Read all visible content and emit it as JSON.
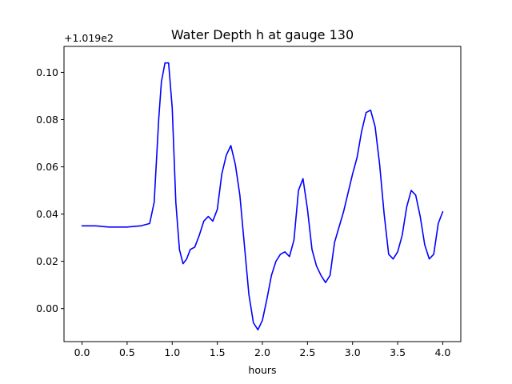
{
  "chart_data": {
    "type": "line",
    "title": "Water Depth h at gauge 130",
    "xlabel": "hours",
    "ylabel": "",
    "y_offset_label": "+1.019e2",
    "xlim": [
      -0.2,
      4.2
    ],
    "ylim": [
      -0.014,
      0.111
    ],
    "xticks": [
      0.0,
      0.5,
      1.0,
      1.5,
      2.0,
      2.5,
      3.0,
      3.5,
      4.0
    ],
    "xtick_labels": [
      "0.0",
      "0.5",
      "1.0",
      "1.5",
      "2.0",
      "2.5",
      "3.0",
      "3.5",
      "4.0"
    ],
    "yticks": [
      0.0,
      0.02,
      0.04,
      0.06,
      0.08,
      0.1
    ],
    "ytick_labels": [
      "0.00",
      "0.02",
      "0.04",
      "0.06",
      "0.08",
      "0.10"
    ],
    "grid": false,
    "line_color": "#0000ff",
    "series": [
      {
        "x": [
          0.0,
          0.15,
          0.3,
          0.5,
          0.65,
          0.75,
          0.8,
          0.85,
          0.88,
          0.92,
          0.96,
          1.0,
          1.04,
          1.08,
          1.12,
          1.16,
          1.2,
          1.25,
          1.3,
          1.35,
          1.4,
          1.45,
          1.5,
          1.55,
          1.6,
          1.65,
          1.7,
          1.75,
          1.8,
          1.85,
          1.9,
          1.95,
          2.0,
          2.05,
          2.1,
          2.15,
          2.2,
          2.25,
          2.3,
          2.35,
          2.4,
          2.45,
          2.5,
          2.55,
          2.6,
          2.65,
          2.7,
          2.75,
          2.8,
          2.9,
          3.0,
          3.05,
          3.1,
          3.15,
          3.2,
          3.25,
          3.3,
          3.35,
          3.4,
          3.45,
          3.5,
          3.55,
          3.6,
          3.65,
          3.7,
          3.75,
          3.8,
          3.85,
          3.9,
          3.95,
          4.0
        ],
        "y": [
          0.035,
          0.035,
          0.0345,
          0.0345,
          0.035,
          0.036,
          0.045,
          0.08,
          0.096,
          0.104,
          0.104,
          0.085,
          0.045,
          0.025,
          0.019,
          0.021,
          0.025,
          0.026,
          0.031,
          0.037,
          0.039,
          0.037,
          0.042,
          0.057,
          0.065,
          0.069,
          0.061,
          0.048,
          0.027,
          0.006,
          -0.006,
          -0.009,
          -0.005,
          0.004,
          0.014,
          0.02,
          0.023,
          0.024,
          0.022,
          0.029,
          0.05,
          0.055,
          0.042,
          0.025,
          0.018,
          0.014,
          0.011,
          0.014,
          0.028,
          0.041,
          0.057,
          0.064,
          0.075,
          0.083,
          0.084,
          0.077,
          0.061,
          0.04,
          0.023,
          0.021,
          0.024,
          0.031,
          0.043,
          0.05,
          0.048,
          0.039,
          0.027,
          0.021,
          0.023,
          0.036,
          0.041
        ]
      }
    ]
  }
}
